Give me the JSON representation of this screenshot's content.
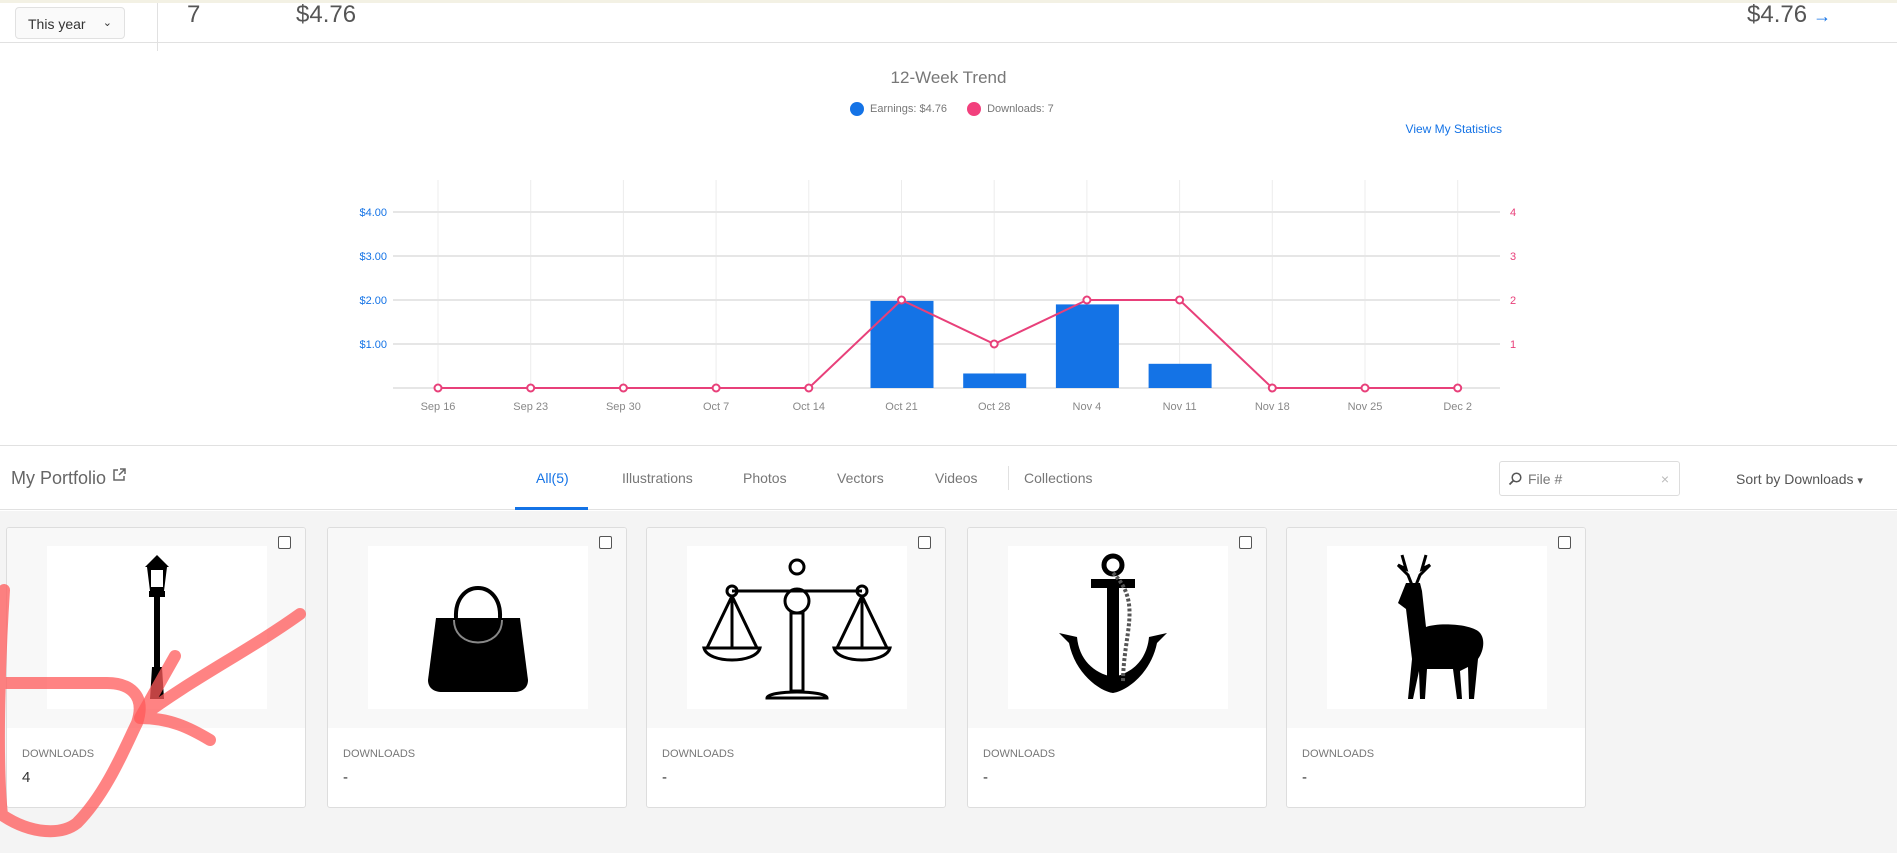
{
  "summary": {
    "period_select": "This year",
    "downloads": "7",
    "earnings": "$4.76",
    "total_earnings": "$4.76",
    "arrow": "→"
  },
  "trend": {
    "title": "12-Week Trend",
    "legend_earnings": "Earnings: $4.76",
    "legend_downloads": "Downloads: 7",
    "view_stats": "View My Statistics"
  },
  "colors": {
    "earnings": "#1473e6",
    "downloads": "#e8407a",
    "accent": "#1473e6",
    "annotation": "#ff5a5a"
  },
  "chart_data": {
    "type": "bar+line",
    "title": "12-Week Trend",
    "categories": [
      "Sep 16",
      "Sep 23",
      "Sep 30",
      "Oct 7",
      "Oct 14",
      "Oct 21",
      "Oct 28",
      "Nov 4",
      "Nov 11",
      "Nov 18",
      "Nov 25",
      "Dec 2"
    ],
    "series": [
      {
        "name": "Earnings",
        "type": "bar",
        "axis": "left",
        "values": [
          0,
          0,
          0,
          0,
          0,
          1.98,
          0.33,
          1.9,
          0.55,
          0,
          0,
          0
        ]
      },
      {
        "name": "Downloads",
        "type": "line",
        "axis": "right",
        "values": [
          0,
          0,
          0,
          0,
          0,
          2,
          1,
          2,
          2,
          0,
          0,
          0
        ]
      }
    ],
    "left_ticks": [
      "$1.00",
      "$2.00",
      "$3.00",
      "$4.00"
    ],
    "right_ticks": [
      "1",
      "2",
      "3",
      "4"
    ],
    "ylim_left": [
      0,
      4.4
    ],
    "ylim_right": [
      0,
      4.4
    ],
    "grid": true
  },
  "portfolio": {
    "title": "My Portfolio",
    "tabs": [
      {
        "label": "All(5)",
        "active": true
      },
      {
        "label": "Illustrations"
      },
      {
        "label": "Photos"
      },
      {
        "label": "Vectors"
      },
      {
        "label": "Videos"
      },
      {
        "label": "Collections"
      }
    ],
    "search_placeholder": "File #",
    "clear": "×",
    "sort": "Sort by Downloads",
    "items": [
      {
        "icon": "street-lamp",
        "label": "DOWNLOADS",
        "value": "4"
      },
      {
        "icon": "handbag",
        "label": "DOWNLOADS",
        "value": "-"
      },
      {
        "icon": "scales-of-justice",
        "label": "DOWNLOADS",
        "value": "-"
      },
      {
        "icon": "anchor",
        "label": "DOWNLOADS",
        "value": "-"
      },
      {
        "icon": "deer",
        "label": "DOWNLOADS",
        "value": "-"
      }
    ]
  }
}
